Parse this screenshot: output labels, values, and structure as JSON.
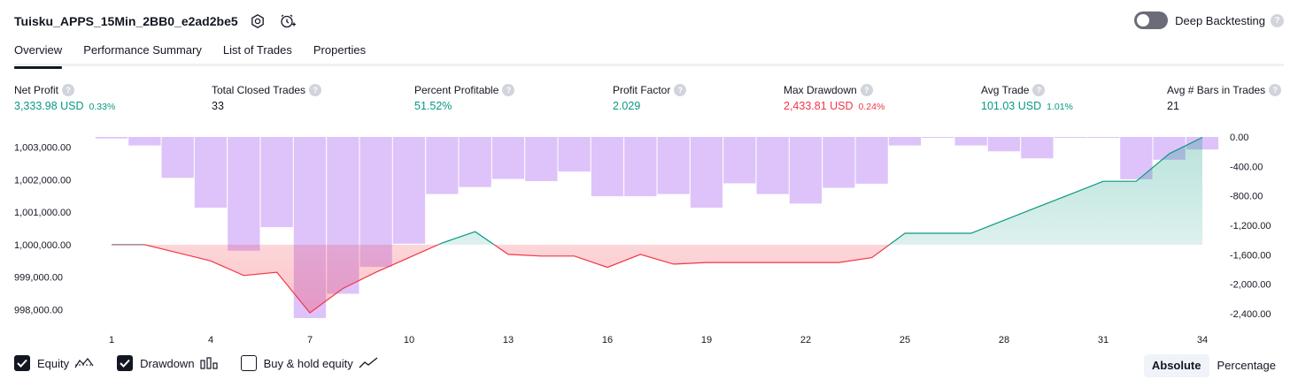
{
  "header": {
    "title": "Tuisku_APPS_15Min_2BB0_e2ad2be5",
    "deep_backtesting_label": "Deep Backtesting",
    "help_glyph": "?"
  },
  "tabs": [
    "Overview",
    "Performance Summary",
    "List of Trades",
    "Properties"
  ],
  "metrics": [
    {
      "label": "Net Profit",
      "value": "3,333.98 USD",
      "pct": "0.33%",
      "color": "green"
    },
    {
      "label": "Total Closed Trades",
      "value": "33",
      "pct": "",
      "color": "dark"
    },
    {
      "label": "Percent Profitable",
      "value": "51.52%",
      "pct": "",
      "color": "green"
    },
    {
      "label": "Profit Factor",
      "value": "2.029",
      "pct": "",
      "color": "green"
    },
    {
      "label": "Max Drawdown",
      "value": "2,433.81 USD",
      "pct": "0.24%",
      "color": "red"
    },
    {
      "label": "Avg Trade",
      "value": "101.03 USD",
      "pct": "1.01%",
      "color": "green"
    },
    {
      "label": "Avg # Bars in Trades",
      "value": "21",
      "pct": "",
      "color": "dark"
    }
  ],
  "legend": {
    "equity": "Equity",
    "drawdown": "Drawdown",
    "buy_hold": "Buy & hold equity"
  },
  "scale": {
    "absolute": "Absolute",
    "percentage": "Percentage"
  },
  "colors": {
    "equity_up": "#089981",
    "equity_down": "#f23645",
    "drawdown_bar": "#ce93d8",
    "text": "#131722"
  },
  "chart_data": {
    "type": "line",
    "x": [
      1,
      2,
      3,
      4,
      5,
      6,
      7,
      8,
      9,
      10,
      11,
      12,
      13,
      14,
      15,
      16,
      17,
      18,
      19,
      20,
      21,
      22,
      23,
      24,
      25,
      26,
      27,
      28,
      29,
      30,
      31,
      32,
      33,
      34
    ],
    "x_ticks": [
      "1",
      "4",
      "7",
      "10",
      "13",
      "16",
      "19",
      "22",
      "25",
      "28",
      "31",
      "34"
    ],
    "x_tick_values": [
      1,
      4,
      7,
      10,
      13,
      16,
      19,
      22,
      25,
      28,
      31,
      34
    ],
    "left_axis": {
      "ticks": [
        "1,003,000.00",
        "1,002,000.00",
        "1,001,000.00",
        "1,000,000.00",
        "999,000.00",
        "998,000.00"
      ],
      "tick_values": [
        1003000,
        1002000,
        1001000,
        1000000,
        999000,
        998000
      ],
      "range": [
        997740,
        1003450
      ]
    },
    "right_axis": {
      "ticks": [
        "0.00",
        "-400.00",
        "-800.00",
        "-1,200.00",
        "-1,600.00",
        "-2,000.00",
        "-2,400.00"
      ],
      "tick_values": [
        0,
        -400,
        -800,
        -1200,
        -1600,
        -2000,
        -2400
      ],
      "range": [
        -2460,
        60
      ]
    },
    "baseline": 1000000,
    "series": [
      {
        "name": "Equity",
        "values": [
          1000000,
          1000000,
          999750,
          999500,
          999050,
          999150,
          997900,
          998650,
          999150,
          999600,
          1000050,
          1000400,
          999700,
          999650,
          999650,
          999300,
          999700,
          999400,
          999450,
          999450,
          999450,
          999450,
          999450,
          999600,
          1000350,
          1000350,
          1000350,
          1000750,
          1001150,
          1001550,
          1001950,
          1001950,
          1002800,
          1003300
        ]
      },
      {
        "name": "Drawdown",
        "values": [
          -20,
          -115,
          -555,
          -960,
          -1545,
          -1225,
          -2460,
          -2130,
          -1765,
          -1450,
          -775,
          -680,
          -570,
          -600,
          -470,
          -805,
          -805,
          -775,
          -960,
          -630,
          -775,
          -905,
          -690,
          -635,
          -115,
          0,
          -115,
          -195,
          -290,
          0,
          0,
          -575,
          -310,
          -170
        ]
      }
    ]
  }
}
